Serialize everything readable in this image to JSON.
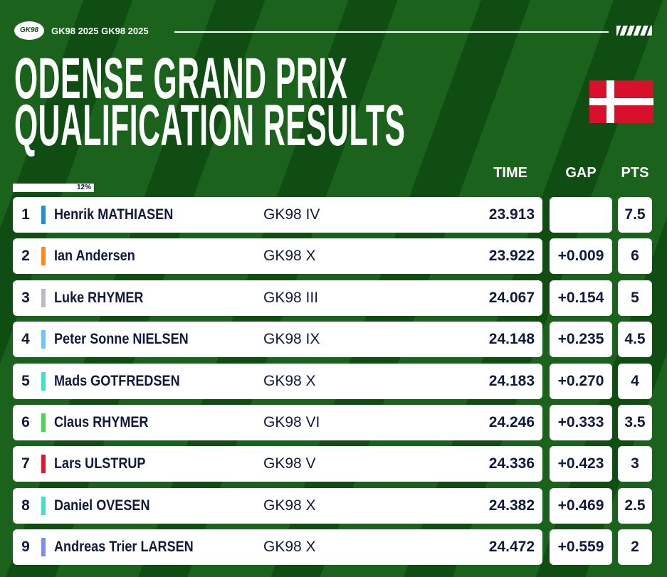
{
  "header": {
    "brand": "GK98 2025 GK98 2025",
    "logo_text": "GK98"
  },
  "title": [
    "ODENSE GRAND PRIX",
    "QUALIFICATION RESULTS"
  ],
  "columns": {
    "time": "TIME",
    "gap": "GAP",
    "pts": "PTS"
  },
  "progress": "12%",
  "rows": [
    {
      "pos": "1",
      "name": "Henrik MATHIASEN",
      "team": "GK98 IV",
      "time": "23.913",
      "pts": "7.5",
      "color": "#1e90d6"
    },
    {
      "pos": "2",
      "name": "Ian Andersen",
      "team": "GK98 X",
      "time": "23.922",
      "gap": "+0.009",
      "pts": "6",
      "color": "#ff8a1c"
    },
    {
      "pos": "3",
      "name": "Luke RHYMER",
      "team": "GK98 III",
      "time": "24.067",
      "gap": "+0.154",
      "pts": "5",
      "color": "#b9bcc2"
    },
    {
      "pos": "4",
      "name": "Peter Sonne NIELSEN",
      "team": "GK98 IX",
      "time": "24.148",
      "gap": "+0.235",
      "pts": "4.5",
      "color": "#6cc7f5"
    },
    {
      "pos": "5",
      "name": "Mads GOTFREDSEN",
      "team": "GK98 X",
      "time": "24.183",
      "gap": "+0.270",
      "pts": "4",
      "color": "#3fe0d0"
    },
    {
      "pos": "6",
      "name": "Claus RHYMER",
      "team": "GK98 VI",
      "time": "24.246",
      "gap": "+0.333",
      "pts": "3.5",
      "color": "#4fd44f"
    },
    {
      "pos": "7",
      "name": "Lars ULSTRUP",
      "team": "GK98 V",
      "time": "24.336",
      "gap": "+0.423",
      "pts": "3",
      "color": "#e0182d"
    },
    {
      "pos": "8",
      "name": "Daniel OVESEN",
      "team": "GK98 X",
      "time": "24.382",
      "gap": "+0.469",
      "pts": "2.5",
      "color": "#3fe0d0"
    },
    {
      "pos": "9",
      "name": "Andreas Trier LARSEN",
      "team": "GK98 X",
      "time": "24.472",
      "gap": "+0.559",
      "pts": "2",
      "color": "#7a8ff0"
    }
  ]
}
